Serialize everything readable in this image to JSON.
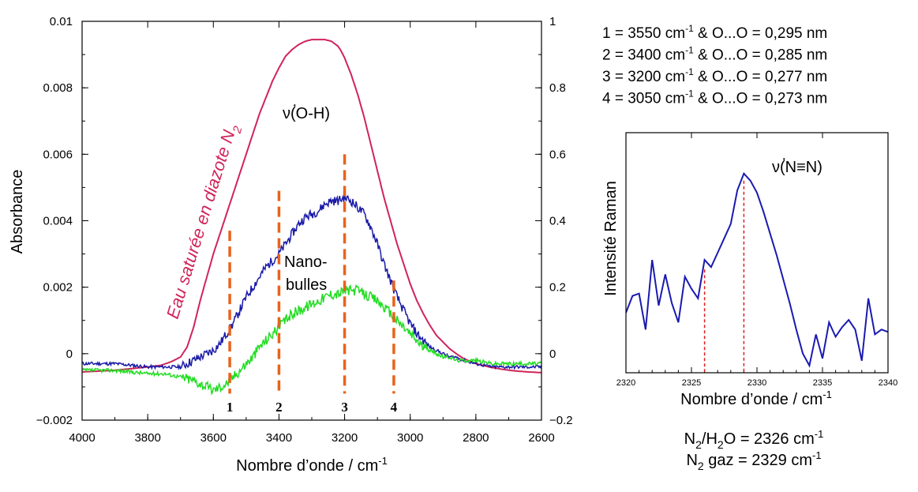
{
  "chart_data": [
    {
      "type": "line",
      "title": "",
      "xlabel": "Nombre d’onde / cm",
      "xlabel_sup": "-1",
      "ylabel": "Absorbance",
      "xlim": [
        4000,
        2600
      ],
      "ylim": [
        -0.002,
        0.01
      ],
      "y2lim": [
        -0.2,
        1.0
      ],
      "x_ticks": [
        "4000",
        "3800",
        "3600",
        "3400",
        "3200",
        "3000",
        "2800",
        "2600"
      ],
      "y_ticks": [
        "0.01",
        "0.008",
        "0.006",
        "0.004",
        "0.002",
        "0",
        "−0.002"
      ],
      "y2_ticks": [
        "1",
        "0.8",
        "0.6",
        "0.4",
        "0.2",
        "0",
        "−0.2"
      ],
      "series": [
        {
          "name": "Eau saturée en diazote N2",
          "label_text": "Eau saturée en diazote N",
          "label_sub": "2",
          "axis": "right",
          "color": "#d0245a",
          "x": [
            4000,
            3900,
            3800,
            3760,
            3730,
            3700,
            3680,
            3660,
            3640,
            3620,
            3600,
            3580,
            3560,
            3540,
            3520,
            3500,
            3480,
            3460,
            3440,
            3420,
            3400,
            3380,
            3360,
            3340,
            3320,
            3300,
            3280,
            3260,
            3240,
            3220,
            3210,
            3200,
            3180,
            3160,
            3140,
            3120,
            3100,
            3080,
            3060,
            3040,
            3020,
            3000,
            2980,
            2960,
            2940,
            2920,
            2900,
            2880,
            2860,
            2840,
            2820,
            2800,
            2760,
            2720,
            2680,
            2640,
            2600
          ],
          "values": [
            -0.055,
            -0.05,
            -0.04,
            -0.035,
            -0.025,
            -0.01,
            0.02,
            0.08,
            0.16,
            0.23,
            0.3,
            0.36,
            0.42,
            0.48,
            0.54,
            0.6,
            0.66,
            0.72,
            0.77,
            0.82,
            0.86,
            0.895,
            0.915,
            0.93,
            0.94,
            0.945,
            0.945,
            0.945,
            0.94,
            0.925,
            0.91,
            0.89,
            0.84,
            0.78,
            0.71,
            0.63,
            0.55,
            0.47,
            0.4,
            0.33,
            0.27,
            0.21,
            0.16,
            0.12,
            0.085,
            0.055,
            0.035,
            0.015,
            0.0,
            -0.013,
            -0.022,
            -0.03,
            -0.04,
            -0.047,
            -0.052,
            -0.055,
            -0.057
          ]
        },
        {
          "name": "Nano-bulles (bleu)",
          "axis": "left",
          "color": "#1a1aa8",
          "x": [
            4000,
            3900,
            3800,
            3750,
            3700,
            3680,
            3660,
            3640,
            3620,
            3600,
            3580,
            3560,
            3540,
            3520,
            3500,
            3480,
            3460,
            3440,
            3420,
            3400,
            3380,
            3360,
            3340,
            3320,
            3300,
            3280,
            3260,
            3240,
            3220,
            3200,
            3180,
            3160,
            3140,
            3120,
            3100,
            3080,
            3060,
            3040,
            3020,
            3000,
            2980,
            2960,
            2940,
            2920,
            2900,
            2880,
            2860,
            2840,
            2800,
            2750,
            2700,
            2650,
            2600
          ],
          "values": [
            -0.0003,
            -0.0003,
            -0.0004,
            -0.0004,
            -0.0004,
            -0.0003,
            -0.0002,
            -0.0001,
            0.0,
            0.0001,
            0.0003,
            0.0006,
            0.0009,
            0.0013,
            0.0017,
            0.002,
            0.0023,
            0.0026,
            0.0028,
            0.003,
            0.0033,
            0.0036,
            0.0039,
            0.0041,
            0.0042,
            0.0043,
            0.0045,
            0.0046,
            0.0046,
            0.0047,
            0.0046,
            0.0044,
            0.0042,
            0.0038,
            0.0033,
            0.0027,
            0.0022,
            0.0017,
            0.0013,
            0.0009,
            0.0006,
            0.0004,
            0.0002,
            0.0001,
            0.0,
            -0.0001,
            -0.0001,
            -0.0002,
            -0.0003,
            -0.0004,
            -0.0004,
            -0.0004,
            -0.0004
          ]
        },
        {
          "name": "Nano-bulles (vert)",
          "axis": "left",
          "color": "#22dd22",
          "x": [
            4000,
            3900,
            3800,
            3750,
            3700,
            3660,
            3640,
            3620,
            3600,
            3580,
            3560,
            3540,
            3520,
            3500,
            3480,
            3460,
            3440,
            3420,
            3400,
            3380,
            3360,
            3340,
            3320,
            3300,
            3280,
            3260,
            3240,
            3220,
            3200,
            3180,
            3160,
            3140,
            3120,
            3100,
            3080,
            3060,
            3040,
            3020,
            3000,
            2980,
            2960,
            2940,
            2920,
            2900,
            2880,
            2860,
            2840,
            2800,
            2750,
            2700,
            2650,
            2600
          ],
          "values": [
            -0.0005,
            -0.0005,
            -0.0006,
            -0.0006,
            -0.0007,
            -0.0008,
            -0.0009,
            -0.001,
            -0.0011,
            -0.001,
            -0.0009,
            -0.0007,
            -0.0005,
            -0.0003,
            -0.0001,
            0.0002,
            0.0004,
            0.0006,
            0.0008,
            0.001,
            0.0012,
            0.0013,
            0.0014,
            0.0015,
            0.0016,
            0.0017,
            0.0018,
            0.0018,
            0.0019,
            0.0019,
            0.0019,
            0.0018,
            0.0017,
            0.0016,
            0.0014,
            0.0012,
            0.001,
            0.0008,
            0.0006,
            0.0004,
            0.0002,
            0.0001,
            0.0,
            -0.0001,
            -0.0001,
            -0.0002,
            -0.0002,
            -0.0002,
            -0.0003,
            -0.0003,
            -0.0003,
            -0.0003
          ]
        }
      ],
      "markers": [
        {
          "label": "1",
          "x": 3550,
          "y_top": 0.0037
        },
        {
          "label": "2",
          "x": 3400,
          "y_top": 0.0049
        },
        {
          "label": "3",
          "x": 3200,
          "y_top": 0.006
        },
        {
          "label": "4",
          "x": 3050,
          "y_top": 0.0022
        }
      ],
      "annotations": {
        "band": "ν(O-H)",
        "band_accent": "·",
        "nano_line1": "Nano-",
        "nano_line2": "bulles"
      }
    },
    {
      "type": "line",
      "title": "",
      "xlabel": "Nombre d’onde / cm",
      "xlabel_sup": "-1",
      "ylabel": "Intensité Raman",
      "xlim": [
        2320,
        2340
      ],
      "x_ticks": [
        "2320",
        "2325",
        "2330",
        "2335",
        "2340"
      ],
      "y_ticks": [],
      "series": [
        {
          "name": "Raman N≡N",
          "color": "#1a1ab0",
          "x": [
            2320,
            2320.5,
            2321,
            2321.5,
            2322,
            2322.5,
            2323,
            2323.5,
            2324,
            2324.5,
            2325,
            2325.5,
            2326,
            2326.5,
            2327,
            2327.5,
            2328,
            2328.5,
            2329,
            2329.5,
            2330,
            2330.5,
            2331,
            2331.5,
            2332,
            2332.5,
            2333,
            2333.5,
            2334,
            2334.5,
            2335,
            2335.5,
            2336,
            2336.5,
            2337,
            2337.5,
            2338,
            2338.5,
            2339,
            2339.5,
            2340
          ],
          "values": [
            0.25,
            0.32,
            0.33,
            0.18,
            0.47,
            0.28,
            0.41,
            0.29,
            0.21,
            0.4,
            0.35,
            0.31,
            0.47,
            0.44,
            0.5,
            0.56,
            0.62,
            0.76,
            0.83,
            0.8,
            0.75,
            0.67,
            0.58,
            0.49,
            0.39,
            0.29,
            0.18,
            0.08,
            0.03,
            0.16,
            0.06,
            0.21,
            0.15,
            0.19,
            0.22,
            0.18,
            0.05,
            0.31,
            0.16,
            0.18,
            0.17
          ]
        }
      ],
      "markers": [
        {
          "x": 2326,
          "y_top": 0.43
        },
        {
          "x": 2329,
          "y_top": 0.8
        }
      ],
      "annotations": {
        "band": "ν(N≡N)",
        "band_accent": "·"
      }
    }
  ],
  "legend_lines": [
    {
      "prefix": "1 = 3550 cm",
      "sup": "-1",
      "suffix": " & O...O = 0,295 nm"
    },
    {
      "prefix": "2 = 3400 cm",
      "sup": "-1",
      "suffix": " & O...O = 0,285 nm"
    },
    {
      "prefix": "3 = 3200 cm",
      "sup": "-1",
      "suffix": " & O...O = 0,277 nm"
    },
    {
      "prefix": "4 = 3050 cm",
      "sup": "-1",
      "suffix": " & O...O = 0,273 nm"
    }
  ],
  "bottom_notes": {
    "line1": {
      "a": "N",
      "a_sub": "2",
      "b": "/H",
      "b_sub": "2",
      "c": "O = 2326 cm",
      "c_sup": "-1"
    },
    "line2": {
      "a": "N",
      "a_sub": "2",
      "b": " gaz = 2329 cm",
      "b_sup": "-1"
    }
  },
  "colors": {
    "red_curve": "#d0245a",
    "blue_curve": "#1a1aa8",
    "green_curve": "#22dd22",
    "orange_markers": "#e8631c",
    "raman_line": "#1a1ab0",
    "raman_markers": "#dd1e1e"
  }
}
